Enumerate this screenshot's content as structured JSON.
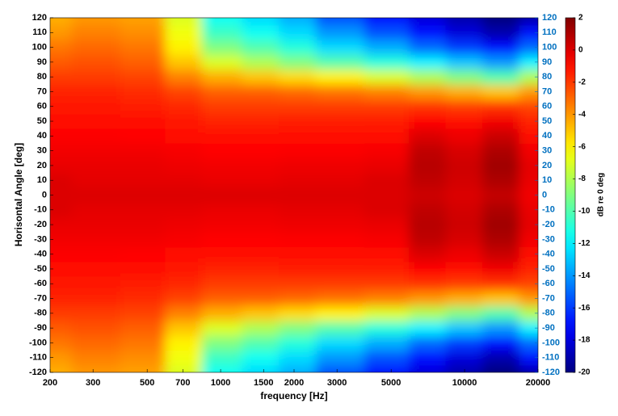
{
  "chart_data": {
    "type": "heatmap",
    "xlabel": "frequency [Hz]",
    "ylabel": "Horisontal Angle [deg]",
    "colorbar_label": "dB re 0 deg",
    "x": [
      200,
      300,
      500,
      700,
      1000,
      1500,
      2000,
      3000,
      5000,
      7000,
      10000,
      14000,
      20000
    ],
    "y": [
      -120,
      -110,
      -100,
      -90,
      -80,
      -70,
      -60,
      -50,
      -40,
      -30,
      -20,
      -10,
      0,
      10,
      20,
      30,
      40,
      50,
      60,
      70,
      80,
      90,
      100,
      110,
      120
    ],
    "values": [
      [
        -4.5,
        -4,
        -4.2,
        -7,
        -11.5,
        -12.5,
        -13.5,
        -15.5,
        -17,
        -18,
        -19,
        -20,
        -19
      ],
      [
        -4,
        -3.5,
        -3.8,
        -6.5,
        -10.5,
        -11.5,
        -12.5,
        -14,
        -15.5,
        -17,
        -18,
        -19,
        -17
      ],
      [
        -3.3,
        -3,
        -3.3,
        -6,
        -9,
        -10,
        -11,
        -12.5,
        -13.5,
        -15,
        -16,
        -17,
        -15
      ],
      [
        -2.7,
        -2.5,
        -2.8,
        -5,
        -7,
        -8,
        -9,
        -10,
        -11,
        -12,
        -13,
        -14,
        -12
      ],
      [
        -2,
        -2,
        -2.2,
        -3.5,
        -4.5,
        -5,
        -5.5,
        -6,
        -7,
        -8,
        -9,
        -10,
        -8
      ],
      [
        -1.5,
        -1.5,
        -1.7,
        -2.2,
        -2.8,
        -2.8,
        -3,
        -3.2,
        -3.5,
        -4,
        -4.5,
        -5,
        -4
      ],
      [
        -1.2,
        -1.2,
        -1.3,
        -1.6,
        -2,
        -2,
        -2,
        -2,
        -2,
        -1.8,
        -2,
        -1.8,
        -2.2
      ],
      [
        -1,
        -1,
        -1,
        -1.2,
        -1.5,
        -1.5,
        -1.4,
        -1.4,
        -1.3,
        -0.8,
        -1,
        -0.5,
        -1.5
      ],
      [
        -0.7,
        -0.7,
        -0.8,
        -0.9,
        -1.1,
        -1.1,
        -1,
        -1,
        -0.9,
        0,
        -0.4,
        0.4,
        -1
      ],
      [
        -0.5,
        -0.5,
        -0.5,
        -0.6,
        -0.8,
        -0.8,
        -0.7,
        -0.7,
        -0.6,
        0.6,
        0.1,
        1,
        -0.5
      ],
      [
        -0.3,
        -0.3,
        -0.3,
        -0.4,
        -0.5,
        -0.5,
        -0.4,
        -0.4,
        -0.3,
        0.8,
        0.3,
        1.3,
        -0.2
      ],
      [
        0,
        -0.2,
        -0.2,
        -0.2,
        -0.3,
        -0.3,
        -0.2,
        -0.2,
        0,
        0.6,
        0.2,
        1,
        -0.3
      ],
      [
        0,
        0,
        0,
        0,
        0,
        0,
        0,
        0,
        0,
        0.3,
        0,
        0.5,
        -0.5
      ],
      [
        0,
        -0.2,
        -0.2,
        -0.2,
        -0.3,
        -0.3,
        -0.2,
        -0.2,
        0,
        0.6,
        0.2,
        1,
        -0.3
      ],
      [
        -0.3,
        -0.3,
        -0.3,
        -0.4,
        -0.5,
        -0.5,
        -0.4,
        -0.4,
        -0.3,
        0.8,
        0.3,
        1.3,
        -0.2
      ],
      [
        -0.5,
        -0.5,
        -0.5,
        -0.6,
        -0.8,
        -0.8,
        -0.7,
        -0.7,
        -0.6,
        0.6,
        0.1,
        1,
        -0.5
      ],
      [
        -0.7,
        -0.7,
        -0.8,
        -0.9,
        -1.1,
        -1.1,
        -1,
        -1,
        -0.9,
        0,
        -0.4,
        0.4,
        -1
      ],
      [
        -1,
        -1,
        -1,
        -1.2,
        -1.5,
        -1.5,
        -1.4,
        -1.4,
        -1.3,
        -0.8,
        -1,
        -0.5,
        -1.5
      ],
      [
        -1.2,
        -1.2,
        -1.3,
        -1.6,
        -2,
        -2,
        -2,
        -2,
        -2,
        -1.8,
        -2,
        -1.8,
        -2.2
      ],
      [
        -1.5,
        -1.5,
        -1.7,
        -2.2,
        -2.8,
        -2.8,
        -3,
        -3.2,
        -3.5,
        -4,
        -4.5,
        -5,
        -4
      ],
      [
        -2,
        -2,
        -2.2,
        -3.5,
        -4.5,
        -5,
        -5.5,
        -6,
        -7,
        -8,
        -9,
        -10,
        -8
      ],
      [
        -2.7,
        -2.5,
        -2.8,
        -5,
        -7,
        -8,
        -9,
        -10,
        -11,
        -12,
        -13,
        -14,
        -12
      ],
      [
        -3.3,
        -3,
        -3.3,
        -6,
        -9,
        -10,
        -11,
        -12.5,
        -13.5,
        -15,
        -16,
        -17,
        -15
      ],
      [
        -4,
        -3.5,
        -3.8,
        -6.5,
        -10.5,
        -11.5,
        -12.5,
        -14,
        -15.5,
        -17,
        -18,
        -19,
        -17
      ],
      [
        -4.5,
        -4,
        -4.2,
        -7,
        -11.5,
        -12.5,
        -13.5,
        -15.5,
        -17,
        -18,
        -19,
        -20,
        -19
      ]
    ],
    "xscale": "log",
    "xlim": [
      200,
      20000
    ],
    "xticks": [
      200,
      300,
      500,
      700,
      1000,
      1500,
      2000,
      3000,
      5000,
      10000,
      20000
    ],
    "ylim": [
      -120,
      120
    ],
    "yticks": [
      -120,
      -110,
      -100,
      -90,
      -80,
      -70,
      -60,
      -50,
      -40,
      -30,
      -20,
      -10,
      0,
      10,
      20,
      30,
      40,
      50,
      60,
      70,
      80,
      90,
      100,
      110,
      120
    ],
    "y2lim": [
      -120,
      120
    ],
    "y2ticks": [
      -120,
      -110,
      -100,
      -90,
      -80,
      -70,
      -60,
      -50,
      -40,
      -30,
      -20,
      -10,
      0,
      10,
      20,
      30,
      40,
      50,
      60,
      70,
      80,
      90,
      100,
      110,
      120
    ],
    "y2_color": "#0070c0",
    "colormap": "jet",
    "clim": [
      -20,
      2
    ],
    "cticks": [
      -20,
      -18,
      -16,
      -14,
      -12,
      -10,
      -8,
      -6,
      -4,
      -2,
      0,
      2
    ]
  }
}
